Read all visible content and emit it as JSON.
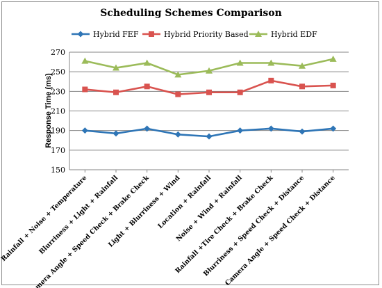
{
  "chart_data": {
    "type": "line",
    "title": "Scheduling Schemes Comparison",
    "xlabel": "",
    "ylabel": "Response Time (ms)",
    "ylim": [
      150,
      270
    ],
    "yticks": [
      150,
      170,
      190,
      210,
      230,
      250,
      270
    ],
    "grid": true,
    "legend_position": "top",
    "categories": [
      "Rainfall + Noise + Temperature",
      "Blurriness + Light + Rainfall",
      "Camera Angle + Speed Check + Brake Check",
      "Light + Blurriness + Wind",
      "Location + Rainfall",
      "Noise + Wind + Rainfall",
      "Rainfall +Tire Check + Brake Check",
      "Blurriness + Speed Check + Distance",
      "Camera Angle + Speed Check + Distance"
    ],
    "series": [
      {
        "name": "Hybrid FEF",
        "color": "#2e75b6",
        "marker": "diamond",
        "values": [
          190,
          187,
          192,
          186,
          184,
          190,
          192,
          189,
          192
        ]
      },
      {
        "name": "Hybrid Priority Based",
        "color": "#d9534f",
        "marker": "square",
        "values": [
          232,
          229,
          235,
          227,
          229,
          229,
          241,
          235,
          236
        ]
      },
      {
        "name": "Hybrid EDF",
        "color": "#9bbb59",
        "marker": "triangle",
        "values": [
          261,
          254,
          259,
          247,
          251,
          259,
          259,
          256,
          263
        ]
      }
    ]
  }
}
